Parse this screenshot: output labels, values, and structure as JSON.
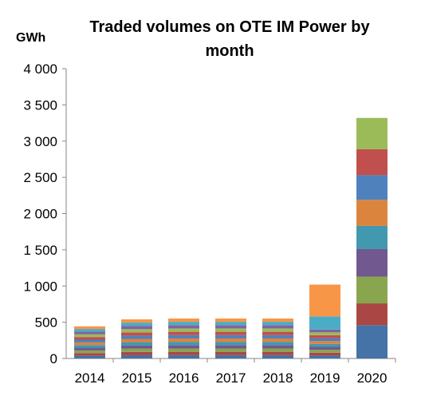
{
  "chart_data": {
    "type": "bar",
    "stacked": true,
    "title_lines": [
      "Traded volumes on OTE IM Power by",
      "month"
    ],
    "ylabel": "GWh",
    "ylim": [
      0,
      4000
    ],
    "yticks": [
      0,
      500,
      1000,
      1500,
      2000,
      2500,
      3000,
      3500,
      4000
    ],
    "ytick_labels": [
      "0",
      "500",
      "1 000",
      "1 500",
      "2 000",
      "2 500",
      "3 000",
      "3 500",
      "4 000"
    ],
    "grid": false,
    "legend": "none",
    "categories": [
      "2014",
      "2015",
      "2016",
      "2017",
      "2018",
      "2019",
      "2020"
    ],
    "series": [
      {
        "color": "#4572a7",
        "values": [
          37,
          45,
          46,
          46,
          46,
          40,
          460
        ]
      },
      {
        "color": "#aa4643",
        "values": [
          37,
          45,
          46,
          46,
          46,
          40,
          300
        ]
      },
      {
        "color": "#89a54e",
        "values": [
          37,
          45,
          46,
          46,
          46,
          40,
          370
        ]
      },
      {
        "color": "#71588f",
        "values": [
          37,
          45,
          46,
          46,
          46,
          40,
          380
        ]
      },
      {
        "color": "#4198af",
        "values": [
          37,
          45,
          46,
          46,
          46,
          40,
          320
        ]
      },
      {
        "color": "#db843d",
        "values": [
          37,
          45,
          46,
          46,
          46,
          40,
          360
        ]
      },
      {
        "color": "#4f81bd",
        "values": [
          37,
          45,
          46,
          46,
          46,
          40,
          340
        ]
      },
      {
        "color": "#c0504d",
        "values": [
          37,
          45,
          46,
          46,
          46,
          40,
          360
        ]
      },
      {
        "color": "#9bbb59",
        "values": [
          37,
          45,
          46,
          46,
          46,
          40,
          430
        ]
      },
      {
        "color": "#8064a2",
        "values": [
          37,
          45,
          46,
          46,
          46,
          40,
          0
        ]
      },
      {
        "color": "#4bacc6",
        "values": [
          37,
          45,
          46,
          46,
          46,
          180,
          0
        ]
      },
      {
        "color": "#f79646",
        "values": [
          37,
          45,
          46,
          46,
          46,
          440,
          0
        ]
      }
    ]
  }
}
